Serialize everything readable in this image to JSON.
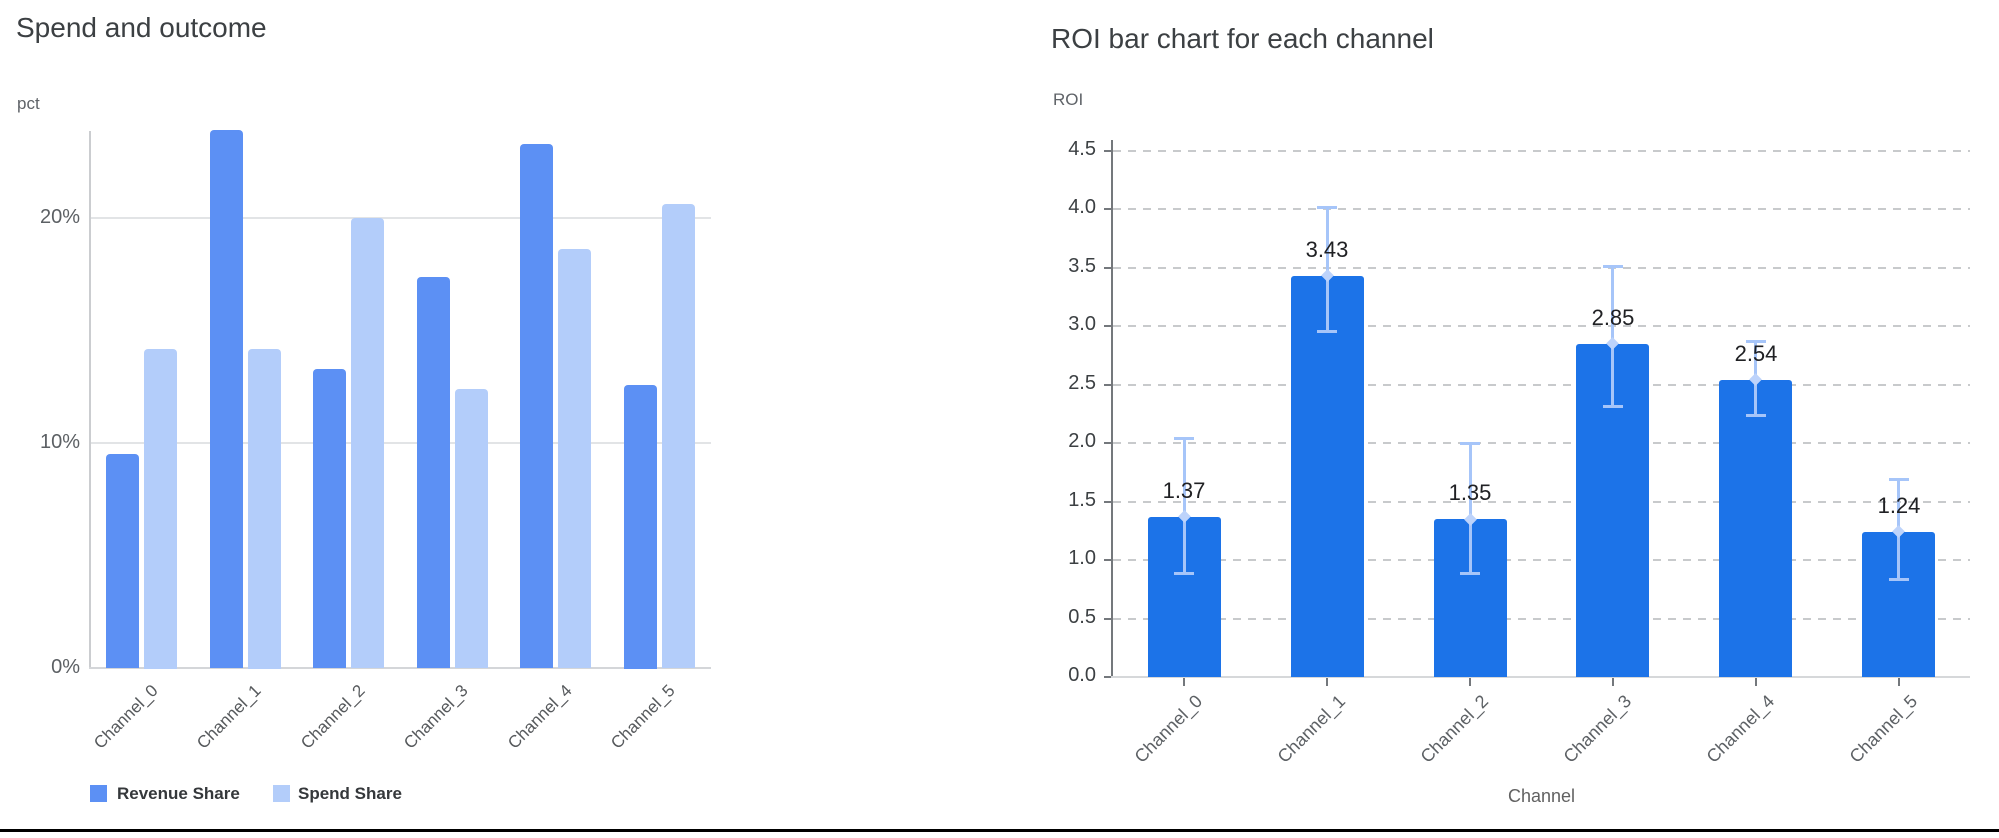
{
  "chart_data": [
    {
      "type": "bar",
      "title": "Spend and outcome",
      "ylabel": "pct",
      "xlabel": "",
      "categories": [
        "Channel_0",
        "Channel_1",
        "Channel_2",
        "Channel_3",
        "Channel_4",
        "Channel_5"
      ],
      "series": [
        {
          "name": "Revenue Share",
          "color": "#5c90f4",
          "values": [
            9.5,
            23.9,
            13.3,
            17.4,
            23.3,
            12.6
          ]
        },
        {
          "name": "Spend Share",
          "color": "#b3cdfa",
          "values": [
            14.2,
            14.2,
            20.0,
            12.4,
            18.6,
            20.6
          ]
        }
      ],
      "unit": "%",
      "y_ticks": [
        {
          "label": "0%",
          "value": 0
        },
        {
          "label": "10%",
          "value": 10
        },
        {
          "label": "20%",
          "value": 20
        }
      ],
      "ylim": [
        0,
        24
      ],
      "grid": "horizontal-solid",
      "legend_position": "bottom-left"
    },
    {
      "type": "bar",
      "title": "ROI bar chart for each channel",
      "ylabel": "ROI",
      "xlabel": "Channel",
      "categories": [
        "Channel_0",
        "Channel_1",
        "Channel_2",
        "Channel_3",
        "Channel_4",
        "Channel_5"
      ],
      "series": [
        {
          "name": "ROI",
          "color": "#1c73e8",
          "values": [
            1.37,
            3.43,
            1.35,
            2.85,
            2.54,
            1.24
          ]
        }
      ],
      "value_labels": [
        "1.37",
        "3.43",
        "1.35",
        "2.85",
        "2.54",
        "1.24"
      ],
      "error_bars": {
        "color": "#a6c5f9",
        "low": [
          0.88,
          2.95,
          0.88,
          2.31,
          2.23,
          0.83
        ],
        "high": [
          2.04,
          4.02,
          2.0,
          3.51,
          2.87,
          1.69
        ]
      },
      "y_ticks": [
        {
          "label": "0.0",
          "value": 0.0
        },
        {
          "label": "0.5",
          "value": 0.5
        },
        {
          "label": "1.0",
          "value": 1.0
        },
        {
          "label": "1.5",
          "value": 1.5
        },
        {
          "label": "2.0",
          "value": 2.0
        },
        {
          "label": "2.5",
          "value": 2.5
        },
        {
          "label": "3.0",
          "value": 3.0
        },
        {
          "label": "3.5",
          "value": 3.5
        },
        {
          "label": "4.0",
          "value": 4.0
        },
        {
          "label": "4.5",
          "value": 4.5
        }
      ],
      "ylim": [
        0,
        4.6
      ],
      "grid": "horizontal-dashed",
      "legend_position": "none"
    }
  ]
}
